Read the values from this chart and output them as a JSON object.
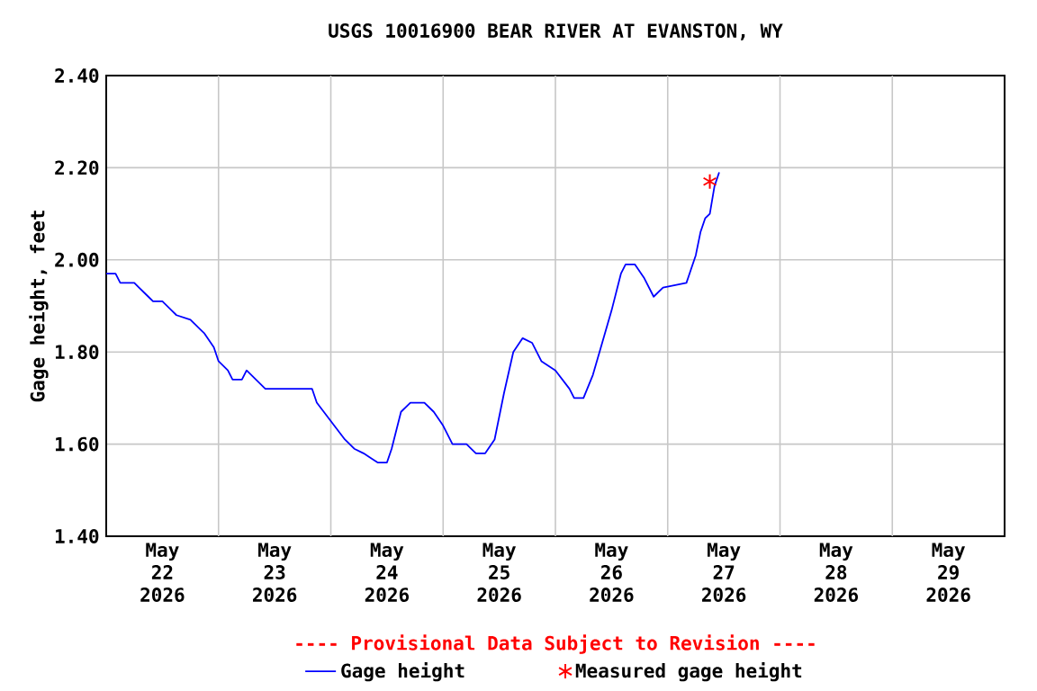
{
  "chart_data": {
    "type": "line",
    "title": "USGS 10016900 BEAR RIVER AT EVANSTON, WY",
    "ylabel": "Gage height, feet",
    "annotations": [
      "---- Provisional Data Subject to Revision ----"
    ],
    "xlim": [
      "2026-05-22",
      "2026-05-30"
    ],
    "xticks": [
      {
        "value": "2026-05-22T12:00",
        "label": "May 22 2026"
      },
      {
        "value": "2026-05-23T12:00",
        "label": "May 23 2026"
      },
      {
        "value": "2026-05-24T12:00",
        "label": "May 24 2026"
      },
      {
        "value": "2026-05-25T12:00",
        "label": "May 25 2026"
      },
      {
        "value": "2026-05-26T12:00",
        "label": "May 26 2026"
      },
      {
        "value": "2026-05-27T12:00",
        "label": "May 27 2026"
      },
      {
        "value": "2026-05-28T12:00",
        "label": "May 28 2026"
      },
      {
        "value": "2026-05-29T12:00",
        "label": "May 29 2026"
      },
      {
        "value": "2026-05-23",
        "label": null
      },
      {
        "value": "2026-05-24",
        "label": null
      },
      {
        "value": "2026-05-25",
        "label": null
      },
      {
        "value": "2026-05-26",
        "label": null
      },
      {
        "value": "2026-05-27",
        "label": null
      },
      {
        "value": "2026-05-28",
        "label": null
      },
      {
        "value": "2026-05-29",
        "label": null
      }
    ],
    "ylim": [
      1.4,
      2.4
    ],
    "yticks": [
      {
        "value": 1.4,
        "label": "1.40"
      },
      {
        "value": 1.6,
        "label": "1.60"
      },
      {
        "value": 1.8,
        "label": "1.80"
      },
      {
        "value": 2.0,
        "label": "2.00"
      },
      {
        "value": 2.2,
        "label": "2.20"
      },
      {
        "value": 2.4,
        "label": "2.40"
      }
    ],
    "grid": true,
    "legend": "bottom",
    "series": [
      {
        "name": "Gage height",
        "type": "line",
        "marker": "none",
        "color": "#0000ff",
        "x": [
          "2026-05-22T00:00",
          "2026-05-22T02:00",
          "2026-05-22T03:00",
          "2026-05-22T06:00",
          "2026-05-22T07:00",
          "2026-05-22T09:00",
          "2026-05-22T10:00",
          "2026-05-22T12:00",
          "2026-05-22T14:00",
          "2026-05-22T15:00",
          "2026-05-22T18:00",
          "2026-05-22T20:00",
          "2026-05-22T21:00",
          "2026-05-22T23:00",
          "2026-05-23T00:00",
          "2026-05-23T02:00",
          "2026-05-23T03:00",
          "2026-05-23T05:00",
          "2026-05-23T06:00",
          "2026-05-23T08:00",
          "2026-05-23T10:00",
          "2026-05-23T12:00",
          "2026-05-23T14:00",
          "2026-05-23T20:00",
          "2026-05-23T21:00",
          "2026-05-24T00:00",
          "2026-05-24T03:00",
          "2026-05-24T05:00",
          "2026-05-24T07:00",
          "2026-05-24T10:00",
          "2026-05-24T12:00",
          "2026-05-24T13:00",
          "2026-05-24T15:00",
          "2026-05-24T17:00",
          "2026-05-24T20:00",
          "2026-05-24T22:00",
          "2026-05-25T00:00",
          "2026-05-25T02:00",
          "2026-05-25T05:00",
          "2026-05-25T07:00",
          "2026-05-25T09:00",
          "2026-05-25T11:00",
          "2026-05-25T13:00",
          "2026-05-25T15:00",
          "2026-05-25T17:00",
          "2026-05-25T19:00",
          "2026-05-25T21:00",
          "2026-05-26T00:00",
          "2026-05-26T03:00",
          "2026-05-26T04:00",
          "2026-05-26T06:00",
          "2026-05-26T08:00",
          "2026-05-26T10:00",
          "2026-05-26T12:00",
          "2026-05-26T14:00",
          "2026-05-26T15:00",
          "2026-05-26T17:00",
          "2026-05-26T19:00",
          "2026-05-26T21:00",
          "2026-05-26T22:00",
          "2026-05-26T23:00",
          "2026-05-27T04:00",
          "2026-05-27T05:00",
          "2026-05-27T06:00",
          "2026-05-27T07:00",
          "2026-05-27T08:00",
          "2026-05-27T09:00",
          "2026-05-27T10:00",
          "2026-05-27T11:00"
        ],
        "values": [
          1.97,
          1.97,
          1.95,
          1.95,
          1.94,
          1.92,
          1.91,
          1.91,
          1.89,
          1.88,
          1.87,
          1.85,
          1.84,
          1.81,
          1.78,
          1.76,
          1.74,
          1.74,
          1.76,
          1.74,
          1.72,
          1.72,
          1.72,
          1.72,
          1.69,
          1.65,
          1.61,
          1.59,
          1.58,
          1.56,
          1.56,
          1.59,
          1.67,
          1.69,
          1.69,
          1.67,
          1.64,
          1.6,
          1.6,
          1.58,
          1.58,
          1.61,
          1.71,
          1.8,
          1.83,
          1.82,
          1.78,
          1.76,
          1.72,
          1.7,
          1.7,
          1.75,
          1.82,
          1.89,
          1.97,
          1.99,
          1.99,
          1.96,
          1.92,
          1.93,
          1.94,
          1.95,
          1.98,
          2.01,
          2.06,
          2.09,
          2.1,
          2.16,
          2.19
        ]
      },
      {
        "name": "Measured gage height",
        "type": "scatter",
        "marker": "cross",
        "color": "#ff0000",
        "x": [
          "2026-05-27T09:00"
        ],
        "values": [
          2.17
        ]
      }
    ]
  }
}
